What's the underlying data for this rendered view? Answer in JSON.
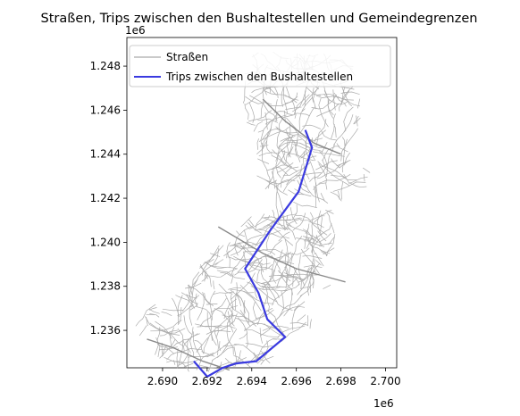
{
  "chart_data": {
    "type": "map",
    "title": "Straßen, Trips zwischen den Bushaltestellen und Gemeindegrenzen",
    "x_offset_label": "1e6",
    "y_offset_label": "1e6",
    "x_ticks": [
      "2.690",
      "2.692",
      "2.694",
      "2.696",
      "2.698",
      "2.700"
    ],
    "y_ticks": [
      "1.236",
      "1.238",
      "1.240",
      "1.242",
      "1.244",
      "1.246",
      "1.248"
    ],
    "x_tick_values": [
      2.69,
      2.692,
      2.694,
      2.696,
      2.698,
      2.7
    ],
    "y_tick_values": [
      1.236,
      1.238,
      1.24,
      1.242,
      1.244,
      1.246,
      1.248
    ],
    "xlim": [
      2.6884,
      2.7005
    ],
    "ylim": [
      1.2343,
      1.2493
    ],
    "legend": {
      "position": "upper left",
      "entries": [
        {
          "label": "Straßen",
          "color": "#aaaaaa"
        },
        {
          "label": "Trips zwischen den Bushaltestellen",
          "color": "#3a3ae0"
        }
      ]
    },
    "trip_route": {
      "color": "#3a3ae0",
      "points_1e6": [
        [
          2.6964,
          1.2451
        ],
        [
          2.6967,
          1.2443
        ],
        [
          2.6961,
          1.2423
        ],
        [
          2.6948,
          1.2405
        ],
        [
          2.6937,
          1.2388
        ],
        [
          2.6943,
          1.2377
        ],
        [
          2.6947,
          1.2365
        ],
        [
          2.6955,
          1.2357
        ],
        [
          2.6942,
          1.2346
        ],
        [
          2.6933,
          1.2345
        ],
        [
          2.6927,
          1.2343
        ],
        [
          2.692,
          1.2339
        ],
        [
          2.6914,
          1.2346
        ]
      ]
    }
  }
}
